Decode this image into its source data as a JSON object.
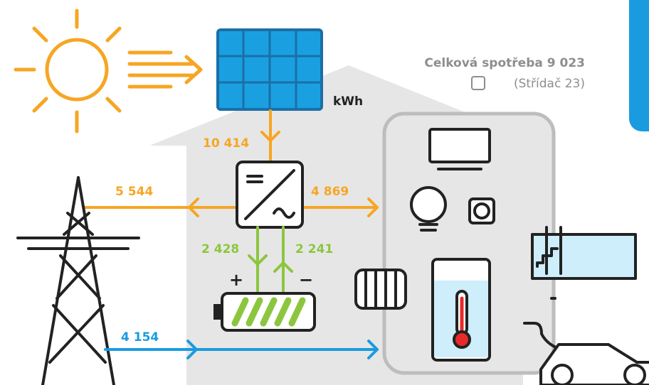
{
  "header": {
    "title": "Celková spotřeba 9 023",
    "subtitle": "(Střídač 23)",
    "unit": "kWh"
  },
  "flows": {
    "solar": "10 414",
    "grid_export": "5 544",
    "to_home": "4 869",
    "battery_charge": "2 428",
    "battery_discharge": "2 241",
    "grid_import": "4 154"
  },
  "battery": {
    "plus": "+",
    "minus": "−"
  }
}
